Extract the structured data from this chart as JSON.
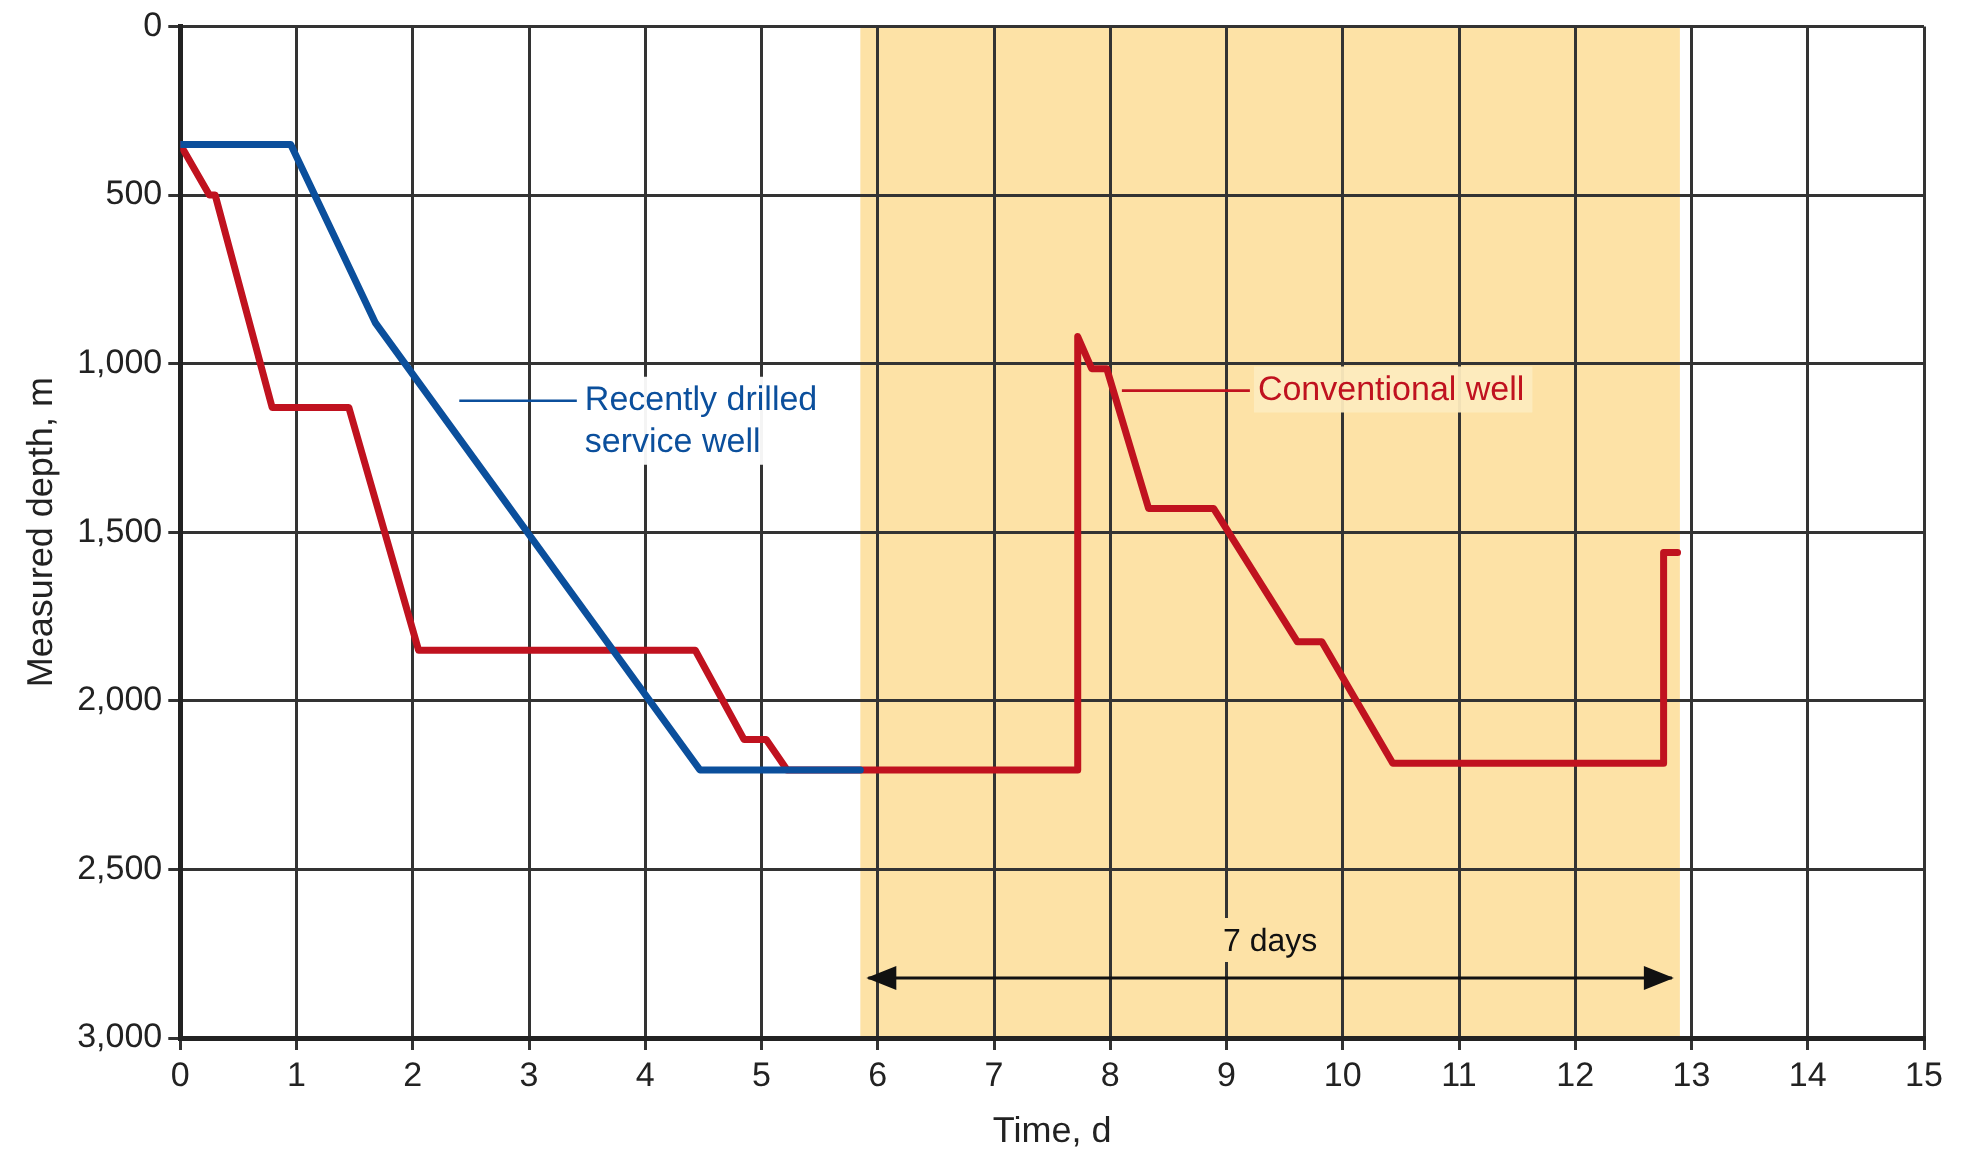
{
  "chart_data": {
    "type": "line",
    "xlabel": "Time, d",
    "ylabel": "Measured depth, m",
    "series": [
      {
        "name": "Recently drilled service well",
        "color": "#0b4f9c",
        "x": [
          0,
          0.95,
          1.68,
          4.47,
          5.85
        ],
        "values": [
          350,
          350,
          880,
          2205,
          2205
        ]
      },
      {
        "name": "Conventional well",
        "color": "#c0121f",
        "x": [
          0,
          0.25,
          0.3,
          0.79,
          1.45,
          2.05,
          4.43,
          4.85,
          5.04,
          5.22,
          7.72,
          7.72,
          7.84,
          7.97,
          8.33,
          8.89,
          9.61,
          9.82,
          10.43,
          12.76,
          12.76,
          12.88
        ],
        "values": [
          350,
          500,
          500,
          1130,
          1130,
          1850,
          1850,
          2115,
          2115,
          2205,
          2205,
          920,
          1015,
          1015,
          1430,
          1430,
          1825,
          1825,
          2185,
          2185,
          1560,
          1560
        ]
      }
    ],
    "xlim": [
      0,
      15
    ],
    "xticks": [
      0,
      1,
      2,
      3,
      4,
      5,
      6,
      7,
      8,
      9,
      10,
      11,
      12,
      13,
      14,
      15
    ],
    "ylim": [
      3000,
      0
    ],
    "yticks": [
      {
        "value": 0,
        "label": "0"
      },
      {
        "value": 500,
        "label": "500"
      },
      {
        "value": 1000,
        "label": "1,000"
      },
      {
        "value": 1500,
        "label": "1,500"
      },
      {
        "value": 2000,
        "label": "2,000"
      },
      {
        "value": 2500,
        "label": "2,500"
      },
      {
        "value": 3000,
        "label": "3,000"
      }
    ],
    "bands": [
      {
        "axis": "x",
        "from": 5.85,
        "to": 12.9,
        "label": "7 days",
        "color": "#fde2a6"
      }
    ],
    "grid": true,
    "legend": "top",
    "marker": "none",
    "line_style": "solid"
  }
}
